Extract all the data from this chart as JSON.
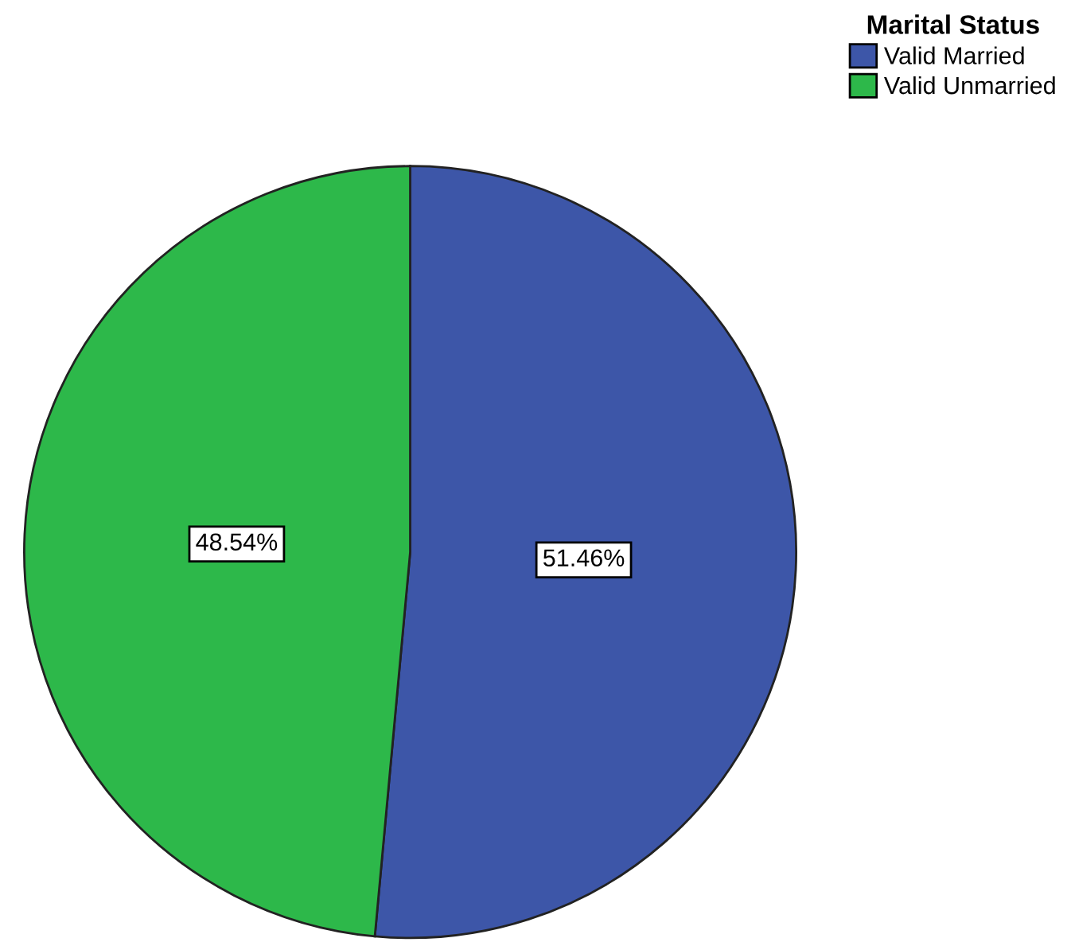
{
  "chart_data": {
    "type": "pie",
    "legend_title": "Marital Status",
    "categories": [
      "Valid Married",
      "Valid Unmarried"
    ],
    "values": [
      51.46,
      48.54
    ],
    "colors": [
      "#3d56a8",
      "#2db84a"
    ],
    "value_labels": [
      "51.46%",
      "48.54%"
    ],
    "legend": "top right"
  }
}
